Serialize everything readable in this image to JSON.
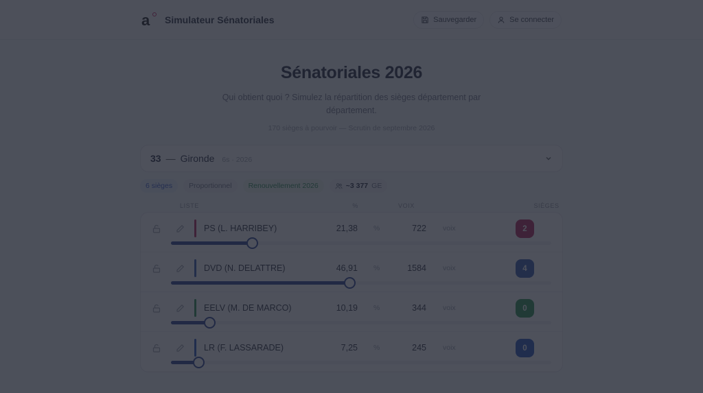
{
  "header": {
    "app_title": "Simulateur Sénatoriales",
    "save_label": "Sauvegarder",
    "login_label": "Se connecter"
  },
  "hero": {
    "title": "Sénatoriales 2026",
    "subtitle": "Qui obtient quoi ? Simulez la répartition des sièges département par département.",
    "meta": "170 sièges à pourvoir — Scrutin de septembre 2026"
  },
  "department": {
    "number": "33",
    "separator": "—",
    "name": "Gironde",
    "meta": "6s · 2026"
  },
  "chips": {
    "seats": "6 sièges",
    "mode": "Proportionnel",
    "renewal": "Renouvellement 2026",
    "electors_value": "~3 377",
    "electors_unit": "GE"
  },
  "table": {
    "headers": {
      "list": "Liste",
      "pct": "%",
      "votes": "Voix",
      "seats": "Sièges"
    },
    "pct_unit": "%",
    "votes_unit": "voix",
    "rows": [
      {
        "name": "PS (L. HARRIBEY)",
        "pct": "21,38",
        "votes": "722",
        "seats": "2",
        "color": "#b0174f",
        "slider": 21.38
      },
      {
        "name": "DVD (N. DELATTRE)",
        "pct": "46,91",
        "votes": "1584",
        "seats": "4",
        "color": "#2a4fa8",
        "slider": 46.91
      },
      {
        "name": "EELV (M. DE MARCO)",
        "pct": "10,19",
        "votes": "344",
        "seats": "0",
        "color": "#1f8a45",
        "slider": 10.19
      },
      {
        "name": "LR (F. LASSARADE)",
        "pct": "7,25",
        "votes": "245",
        "seats": "0",
        "color": "#1d4ab8",
        "slider": 7.25
      }
    ]
  },
  "colors": {
    "accent": "#1e3a8a",
    "overlay": "rgba(34,38,50,0.80)"
  }
}
